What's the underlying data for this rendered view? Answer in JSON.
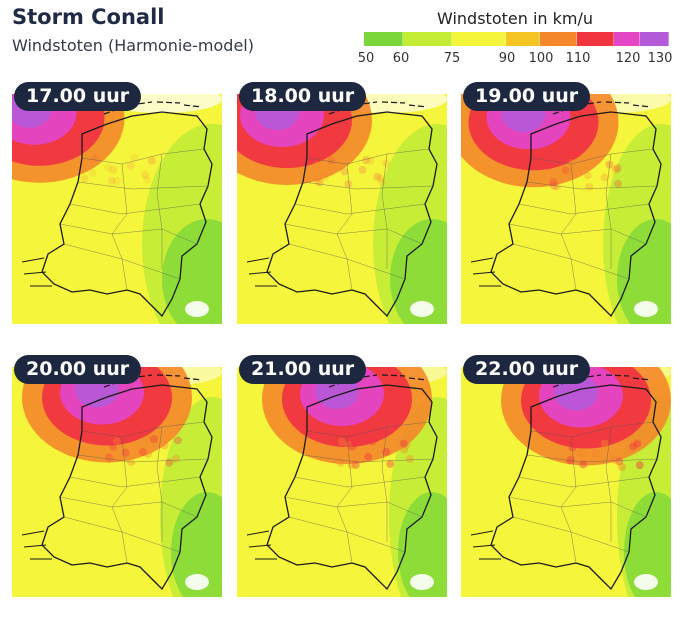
{
  "header": {
    "title": "Storm Conall",
    "subtitle": "Windstoten (Harmonie-model)"
  },
  "legend": {
    "title": "Windstoten in km/u",
    "ticks": [
      "50",
      "60",
      "75",
      "90",
      "100",
      "110",
      "120",
      "130"
    ],
    "bands": [
      {
        "from": 50,
        "to": 60,
        "color": "#7ad63a"
      },
      {
        "from": 60,
        "to": 75,
        "color": "#c3ec35"
      },
      {
        "from": 75,
        "to": 90,
        "color": "#f5f53c"
      },
      {
        "from": 90,
        "to": 100,
        "color": "#f4c422"
      },
      {
        "from": 100,
        "to": 110,
        "color": "#f4872a"
      },
      {
        "from": 110,
        "to": 120,
        "color": "#f03541"
      },
      {
        "from": 120,
        "to": 130,
        "color": "#e345c5"
      },
      {
        "from": 130,
        "to": 140,
        "color": "#b45ad8"
      }
    ]
  },
  "panels": [
    {
      "time": "17.00 uur",
      "intensity": 0.25
    },
    {
      "time": "18.00 uur",
      "intensity": 0.4
    },
    {
      "time": "19.00 uur",
      "intensity": 0.55
    },
    {
      "time": "20.00 uur",
      "intensity": 0.7
    },
    {
      "time": "21.00 uur",
      "intensity": 0.8
    },
    {
      "time": "22.00 uur",
      "intensity": 0.9
    }
  ],
  "colors": {
    "badge": "#1d2740",
    "base_land": "#f3f356",
    "border": "#1a1a1a"
  }
}
